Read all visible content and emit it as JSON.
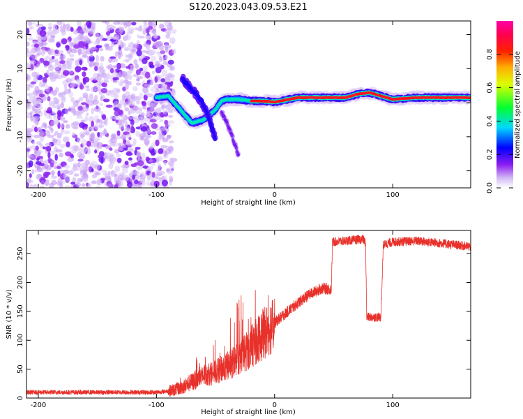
{
  "title": "S120.2023.043.09.53.E21",
  "chart_data": [
    {
      "type": "heatmap",
      "xlabel": "Height of straight line (km)",
      "ylabel": "Frequency (Hz)",
      "xlim": [
        -210,
        166
      ],
      "ylim": [
        -25,
        24
      ],
      "x_ticks": [
        -200,
        -100,
        0,
        100
      ],
      "y_ticks": [
        -20,
        -10,
        0,
        10,
        20
      ],
      "grid": false,
      "colorbar": {
        "label": "Normalized spectral amplitude",
        "range": [
          0,
          1
        ],
        "ticks": [
          0.0,
          0.2,
          0.4,
          0.6,
          0.8
        ],
        "colormap": "white-purple-blue-cyan-green-yellow-orange-red-magenta"
      },
      "noise_region_x": [
        -210,
        -90
      ],
      "ridge": {
        "x": [
          -100,
          -90,
          -80,
          -70,
          -60,
          -50,
          -45,
          -40,
          -30,
          -20,
          -10,
          0,
          20,
          40,
          60,
          70,
          80,
          90,
          100,
          120,
          140,
          166
        ],
        "frequency": [
          1.5,
          2.0,
          -2.0,
          -6.0,
          -5.0,
          -2.0,
          0.5,
          1.0,
          1.0,
          0.5,
          0.5,
          0.2,
          1.5,
          1.5,
          1.5,
          2.5,
          3.0,
          2.0,
          1.0,
          1.5,
          1.5,
          1.5
        ]
      },
      "secondary_streak": {
        "x": [
          -78,
          -70,
          -62,
          -55,
          -50
        ],
        "frequency": [
          7.0,
          4.0,
          0.5,
          -5.0,
          -11.0
        ]
      },
      "tertiary_streak": {
        "x": [
          -45,
          -40,
          -35,
          -30
        ],
        "frequency": [
          -3.0,
          -6.0,
          -11.0,
          -16.0
        ]
      }
    },
    {
      "type": "line",
      "xlabel": "Height of straight line (km)",
      "ylabel": "SNR (10 * v/v)",
      "xlim": [
        -210,
        166
      ],
      "ylim": [
        0,
        290
      ],
      "x_ticks": [
        -200,
        -100,
        0,
        100
      ],
      "y_ticks": [
        0,
        50,
        100,
        150,
        200,
        250
      ],
      "grid": false,
      "series": [
        {
          "color": "#e8312b",
          "x": [
            -210,
            -100,
            -90,
            -80,
            -70,
            -60,
            -50,
            -40,
            -30,
            -20,
            -10,
            0,
            10,
            20,
            30,
            40,
            48,
            49,
            60,
            75,
            77,
            78,
            90,
            92,
            100,
            120,
            140,
            166
          ],
          "y": [
            10,
            10,
            12,
            17,
            28,
            38,
            45,
            55,
            70,
            88,
            110,
            130,
            148,
            165,
            180,
            190,
            188,
            270,
            272,
            275,
            268,
            140,
            140,
            265,
            270,
            272,
            268,
            262
          ]
        }
      ]
    }
  ]
}
